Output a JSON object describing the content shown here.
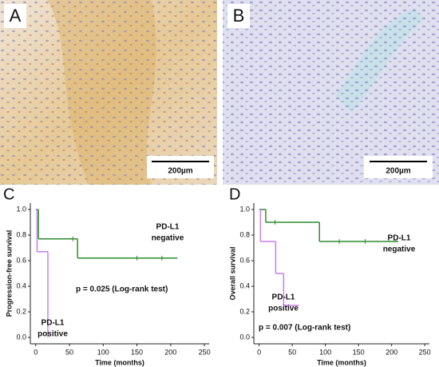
{
  "panels": [
    {
      "label": "A",
      "scale_bar": "200µm"
    },
    {
      "label": "B",
      "scale_bar": "200µm"
    }
  ],
  "chart_data": [
    {
      "type": "step",
      "panel_label": "C",
      "ylabel": "Progression-free survival",
      "xlabel": "Time (months)",
      "xlim": [
        -8,
        257
      ],
      "ylim": [
        -0.05,
        1.05
      ],
      "xticks": [
        0,
        50,
        100,
        150,
        200,
        250
      ],
      "yticks": [
        {
          "value": 0,
          "label": "0.0"
        },
        0.2,
        0.4,
        0.6,
        0.8,
        {
          "value": 1,
          "label": "1.0"
        }
      ],
      "annotation": "p = 0.025 (Log-rank test)",
      "series": [
        {
          "name": [
            "PD-L1",
            "negative"
          ],
          "color": "#2e8b2e",
          "x": [
            0,
            4,
            62,
            210
          ],
          "values": [
            1.0,
            0.77,
            0.62,
            0.62
          ],
          "censored": [
            55,
            150,
            187
          ]
        },
        {
          "name": [
            "PD-L1",
            "positive"
          ],
          "color": "#c77ef0",
          "x": [
            0,
            2,
            18
          ],
          "values": [
            1.0,
            0.67,
            0.0
          ],
          "censored": []
        }
      ]
    },
    {
      "type": "step",
      "panel_label": "D",
      "ylabel": "Overall survival",
      "xlabel": "Time (months)",
      "xlim": [
        -8,
        257
      ],
      "ylim": [
        -0.05,
        1.05
      ],
      "xticks": [
        0,
        50,
        100,
        150,
        200,
        250
      ],
      "yticks": [
        {
          "value": 0,
          "label": "0.0"
        },
        0.2,
        0.4,
        0.6,
        0.8,
        {
          "value": 1,
          "label": "1.0"
        }
      ],
      "annotation": "p = 0.007 (Log-rank test)",
      "series": [
        {
          "name": [
            "PD-L1",
            "negative"
          ],
          "color": "#2e8b2e",
          "x": [
            0,
            10,
            91,
            210
          ],
          "values": [
            1.0,
            0.9,
            0.75,
            0.75
          ],
          "censored": [
            24,
            121,
            160
          ]
        },
        {
          "name": [
            "PD-L1",
            "positive"
          ],
          "color": "#c77ef0",
          "x": [
            0,
            2,
            25,
            37,
            60
          ],
          "values": [
            1.0,
            0.75,
            0.5,
            0.25,
            0.25
          ],
          "censored": []
        }
      ]
    }
  ]
}
